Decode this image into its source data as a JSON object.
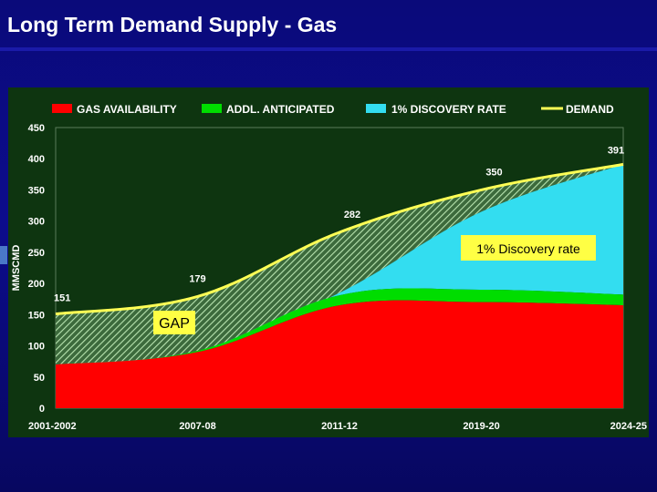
{
  "slide": {
    "title": "Long Term Demand Supply - Gas"
  },
  "colors": {
    "background": "#0a0a7a",
    "plot_background": "#0e3510",
    "gas_availability": "#ff0000",
    "addl_anticipated": "#00dd00",
    "discovery_rate": "#33ddf0",
    "demand": "#ffff55",
    "gap_hatch": "#a8d8a8",
    "annotation_box": "#ffff44"
  },
  "chart_data": {
    "type": "area",
    "title": "",
    "xlabel": "",
    "ylabel": "MMSCMD",
    "ylim": [
      0,
      450
    ],
    "yticks": [
      0,
      50,
      100,
      150,
      200,
      250,
      300,
      350,
      400,
      450
    ],
    "categories": [
      "2001-2002",
      "2007-08",
      "2011-12",
      "2019-20",
      "2024-25"
    ],
    "series": [
      {
        "name": "GAS AVAILABILITY",
        "values": [
          70,
          90,
          165,
          170,
          165
        ]
      },
      {
        "name": "ADDL. ANTICIPATED",
        "values": [
          0,
          2,
          16,
          20,
          17
        ]
      },
      {
        "name": "1% DISCOVERY RATE",
        "values": [
          0,
          0,
          4,
          125,
          209
        ]
      },
      {
        "name": "DEMAND",
        "values": [
          151,
          179,
          282,
          350,
          391
        ]
      }
    ],
    "data_labels": [
      "151",
      "179",
      "282",
      "350",
      "391"
    ],
    "annotations": {
      "gap": "GAP",
      "discovery": "1% Discovery rate"
    },
    "legend": "top"
  }
}
